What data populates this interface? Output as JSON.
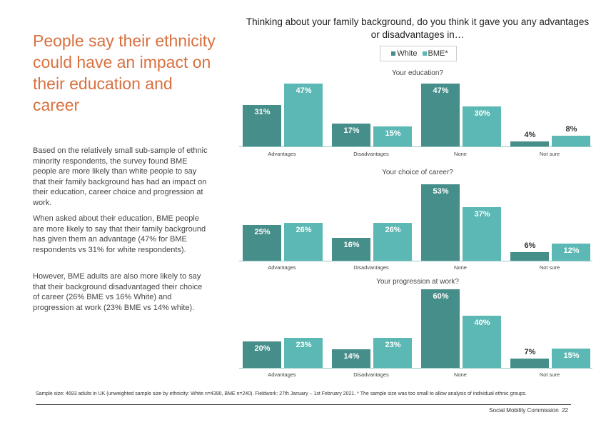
{
  "headline": "People say their ethnicity could have an impact on their education and career",
  "paragraphs": [
    "Based on the relatively small sub-sample of ethnic minority respondents, the survey found BME people are more likely than white people to say that their family background has had an impact on their education, career choice and progression at work.",
    "When asked about their education, BME people are more likely to say that their family background has given them an advantage (47% for BME respondents vs 31% for white respondents).",
    "However, BME adults are also more likely to say that their background disadvantaged their choice of career (26% BME vs 16% White) and progression at work (23% BME vs 14% white)."
  ],
  "question": "Thinking about your family background, do you think it gave you any advantages or disadvantages in…",
  "legend": {
    "white": "White",
    "bme": "BME*"
  },
  "colors": {
    "white": "#468e8a",
    "bme": "#5bb8b4",
    "headline": "#d9703f"
  },
  "chart_data": [
    {
      "type": "bar",
      "title": "Your education?",
      "categories": [
        "Advantages",
        "Disadvantages",
        "None",
        "Not sure"
      ],
      "series": [
        {
          "name": "White",
          "values": [
            31,
            17,
            47,
            4
          ]
        },
        {
          "name": "BME*",
          "values": [
            47,
            15,
            30,
            8
          ]
        }
      ]
    },
    {
      "type": "bar",
      "title": "Your choice of career?",
      "categories": [
        "Advantages",
        "Disadvantages",
        "None",
        "Not sure"
      ],
      "series": [
        {
          "name": "White",
          "values": [
            25,
            16,
            53,
            6
          ]
        },
        {
          "name": "BME*",
          "values": [
            26,
            26,
            37,
            12
          ]
        }
      ]
    },
    {
      "type": "bar",
      "title": "Your progression at work?",
      "categories": [
        "Advantages",
        "Disadvantages",
        "None",
        "Not sure"
      ],
      "series": [
        {
          "name": "White",
          "values": [
            20,
            14,
            60,
            7
          ]
        },
        {
          "name": "BME*",
          "values": [
            23,
            23,
            40,
            15
          ]
        }
      ]
    }
  ],
  "footnote": "Sample size: 4693 adults in UK (unweighted sample size by ethnicity: White n=4390, BME n=240). Fieldwork: 27th January – 1st February 2021. * The sample size was too small to allow analysis of individual ethnic groups.",
  "footer": {
    "org": "Social Mobility Commission",
    "page": "22"
  }
}
